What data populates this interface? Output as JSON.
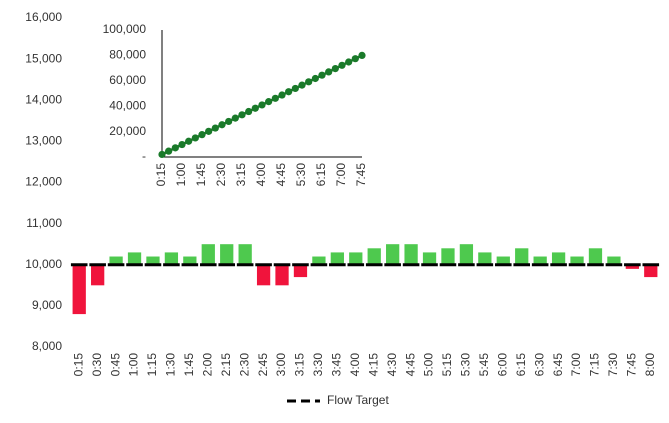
{
  "chart_data": [
    {
      "type": "bar",
      "categories": [
        "0:15",
        "0:30",
        "0:45",
        "1:00",
        "1:15",
        "1:30",
        "1:45",
        "2:00",
        "2:15",
        "2:30",
        "2:45",
        "3:00",
        "3:15",
        "3:30",
        "3:45",
        "4:00",
        "4:15",
        "4:30",
        "4:45",
        "5:00",
        "5:15",
        "5:30",
        "5:45",
        "6:00",
        "6:15",
        "6:30",
        "6:45",
        "7:00",
        "7:15",
        "7:30",
        "7:45",
        "8:00"
      ],
      "values": [
        8800,
        9500,
        10200,
        10300,
        10200,
        10300,
        10200,
        10500,
        10500,
        10500,
        9500,
        9500,
        9700,
        10200,
        10300,
        10300,
        10400,
        10500,
        10500,
        10300,
        10400,
        10500,
        10300,
        10200,
        10400,
        10200,
        10300,
        10200,
        10400,
        10200,
        9900,
        9700
      ],
      "colors": {
        "above": "#4ec94e",
        "below": "#f0143c"
      },
      "target": {
        "name": "Flow Target",
        "color": "#000000",
        "values": [
          10000,
          10000,
          10000,
          10000,
          10000,
          10000,
          10000,
          10000,
          10000,
          10000,
          10000,
          10000,
          10000,
          10000,
          10000,
          10000,
          10000,
          10000,
          10000,
          10000,
          10000,
          10000,
          10000,
          10000,
          10000,
          10000,
          10000,
          10000,
          10000,
          10000,
          10000,
          10000
        ]
      },
      "ylim": [
        8000,
        16000
      ],
      "yticks": [
        {
          "value": 8000,
          "label": "8,000"
        },
        {
          "value": 9000,
          "label": "9,000"
        },
        {
          "value": 10000,
          "label": "10,000"
        },
        {
          "value": 11000,
          "label": "11,000"
        },
        {
          "value": 12000,
          "label": "12,000"
        },
        {
          "value": 13000,
          "label": "13,000"
        },
        {
          "value": 14000,
          "label": "14,000"
        },
        {
          "value": 15000,
          "label": "15,000"
        },
        {
          "value": 16000,
          "label": "16,000"
        }
      ],
      "legend": "bottom"
    },
    {
      "type": "line",
      "categories": [
        "0:15",
        null,
        null,
        "1:00",
        null,
        null,
        "1:45",
        null,
        null,
        "2:30",
        null,
        null,
        "3:15",
        null,
        null,
        "4:00",
        null,
        null,
        "4:45",
        null,
        null,
        "5:30",
        null,
        null,
        "6:15",
        null,
        null,
        "7:00",
        null,
        null,
        "7:45"
      ],
      "values": [
        2000,
        4600,
        7200,
        9800,
        12400,
        15000,
        17600,
        20200,
        22800,
        25400,
        28000,
        30600,
        33200,
        35800,
        38400,
        41000,
        43600,
        46200,
        48800,
        51400,
        54000,
        56600,
        59200,
        61800,
        64400,
        67000,
        69600,
        72200,
        74800,
        77400,
        80000
      ],
      "color": "#1a7a2a",
      "ylim": [
        0,
        100000
      ],
      "yticks": [
        {
          "value": 0,
          "label": "-"
        },
        {
          "value": 20000,
          "label": "20,000"
        },
        {
          "value": 40000,
          "label": "40,000"
        },
        {
          "value": 60000,
          "label": "60,000"
        },
        {
          "value": 80000,
          "label": "80,000"
        },
        {
          "value": 100000,
          "label": "100,000"
        }
      ]
    }
  ]
}
